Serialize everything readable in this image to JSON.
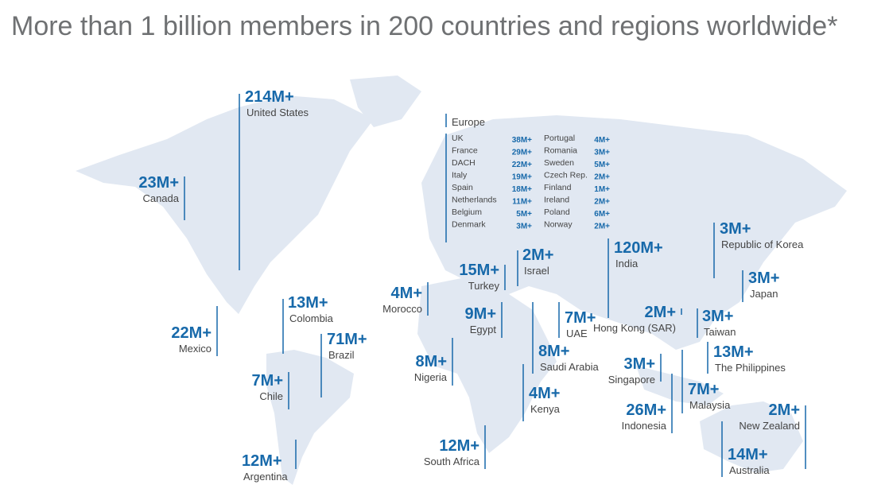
{
  "title": "More than 1 billion members in 200 countries and regions worldwide*",
  "markers": [
    {
      "value": "214M+",
      "name": "United States"
    },
    {
      "value": "23M+",
      "name": "Canada"
    },
    {
      "value": "22M+",
      "name": "Mexico"
    },
    {
      "value": "13M+",
      "name": "Colombia"
    },
    {
      "value": "71M+",
      "name": "Brazil"
    },
    {
      "value": "7M+",
      "name": "Chile"
    },
    {
      "value": "12M+",
      "name": "Argentina"
    },
    {
      "value": "4M+",
      "name": "Morocco"
    },
    {
      "value": "15M+",
      "name": "Turkey"
    },
    {
      "value": "2M+",
      "name": "Israel"
    },
    {
      "value": "9M+",
      "name": "Egypt"
    },
    {
      "value": "8M+",
      "name": "Nigeria"
    },
    {
      "value": "12M+",
      "name": "South Africa"
    },
    {
      "value": "4M+",
      "name": "Kenya"
    },
    {
      "value": "8M+",
      "name": "Saudi Arabia"
    },
    {
      "value": "7M+",
      "name": "UAE"
    },
    {
      "value": "120M+",
      "name": "India"
    },
    {
      "value": "2M+",
      "name": "Hong Kong (SAR)"
    },
    {
      "value": "3M+",
      "name": "Singapore"
    },
    {
      "value": "26M+",
      "name": "Indonesia"
    },
    {
      "value": "7M+",
      "name": "Malaysia"
    },
    {
      "value": "3M+",
      "name": "Taiwan"
    },
    {
      "value": "13M+",
      "name": "The Philippines"
    },
    {
      "value": "3M+",
      "name": "Republic of Korea"
    },
    {
      "value": "3M+",
      "name": "Japan"
    },
    {
      "value": "2M+",
      "name": "New Zealand"
    },
    {
      "value": "14M+",
      "name": "Australia"
    }
  ],
  "europe": {
    "title": "Europe",
    "columns": [
      [
        {
          "name": "UK",
          "value": "38M+"
        },
        {
          "name": "France",
          "value": "29M+"
        },
        {
          "name": "DACH",
          "value": "22M+"
        },
        {
          "name": "Italy",
          "value": "19M+"
        },
        {
          "name": "Spain",
          "value": "18M+"
        },
        {
          "name": "Netherlands",
          "value": "11M+"
        },
        {
          "name": "Belgium",
          "value": "5M+"
        },
        {
          "name": "Denmark",
          "value": "3M+"
        }
      ],
      [
        {
          "name": "Portugal",
          "value": "4M+"
        },
        {
          "name": "Romania",
          "value": "3M+"
        },
        {
          "name": "Sweden",
          "value": "5M+"
        },
        {
          "name": "Czech Rep.",
          "value": "2M+"
        },
        {
          "name": "Finland",
          "value": "1M+"
        },
        {
          "name": "Ireland",
          "value": "2M+"
        },
        {
          "name": "Poland",
          "value": "6M+"
        },
        {
          "name": "Norway",
          "value": "2M+"
        }
      ]
    ]
  }
}
